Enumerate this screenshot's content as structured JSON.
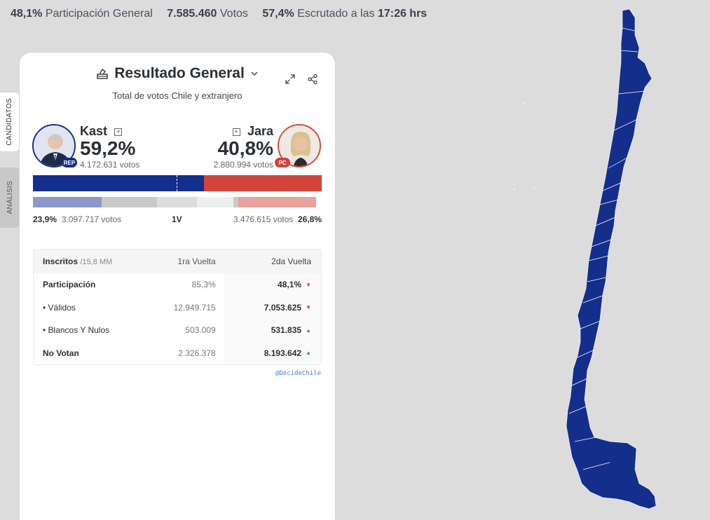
{
  "topbar": {
    "participation_value": "48,1%",
    "participation_label": "Participación General",
    "votes_value": "7.585.460",
    "votes_label": "Votos",
    "counted_value": "57,4%",
    "counted_label": "Escrutado a las",
    "counted_time": "17:26 hrs"
  },
  "side_tabs": {
    "candidatos": "CANDIDATOS",
    "analisis": "ANÁLISIS"
  },
  "card": {
    "title": "Resultado General",
    "subtitle": "Total de votos Chile y extranjero"
  },
  "candidates": {
    "left": {
      "name": "Kast",
      "pct": "59,2%",
      "votes": "4.172.631 votos",
      "party": "REP",
      "color": "#142e8c"
    },
    "right": {
      "name": "Jara",
      "pct": "40,8%",
      "votes": "2.880.994 votos",
      "party": "PC",
      "color": "#d2433a"
    }
  },
  "main_bar": {
    "left_share": 0.592,
    "right_share": 0.408
  },
  "first_round": {
    "left_pct": "23,9%",
    "left_votes": "3.097.717 votos",
    "label": "1V",
    "right_votes": "3.476.615 votos",
    "right_pct": "26,8%",
    "segments": [
      {
        "share": 0.239,
        "color": "#8c99c8"
      },
      {
        "share": 0.19,
        "color": "#c9c9c9"
      },
      {
        "share": 0.14,
        "color": "#dcdcdc"
      },
      {
        "share": 0.125,
        "color": "#eeeeee"
      },
      {
        "share": 0.018,
        "color": "#c9c9c9"
      },
      {
        "share": 0.268,
        "color": "#e8a39c"
      }
    ]
  },
  "table": {
    "headers": {
      "c1": "Inscritos",
      "c1_sub": "/15,8 MM",
      "c2": "1ra Vuelta",
      "c3": "2da Vuelta"
    },
    "rows": [
      {
        "label": "Participación",
        "first": "85,3%",
        "second": "48,1%"
      },
      {
        "label": "•  Válidos",
        "first": "12.949.715",
        "second": "7.053.625"
      },
      {
        "label": "•  Blancos Y Nulos",
        "first": "503.009",
        "second": "531.835"
      },
      {
        "label": "No Votan",
        "first": "2.326.378",
        "second": "8.193.642"
      }
    ],
    "arrows": {
      "down": "▼",
      "up": "▲"
    }
  },
  "credit": "@DecideChile",
  "map": {
    "fill": "#142e8c"
  }
}
